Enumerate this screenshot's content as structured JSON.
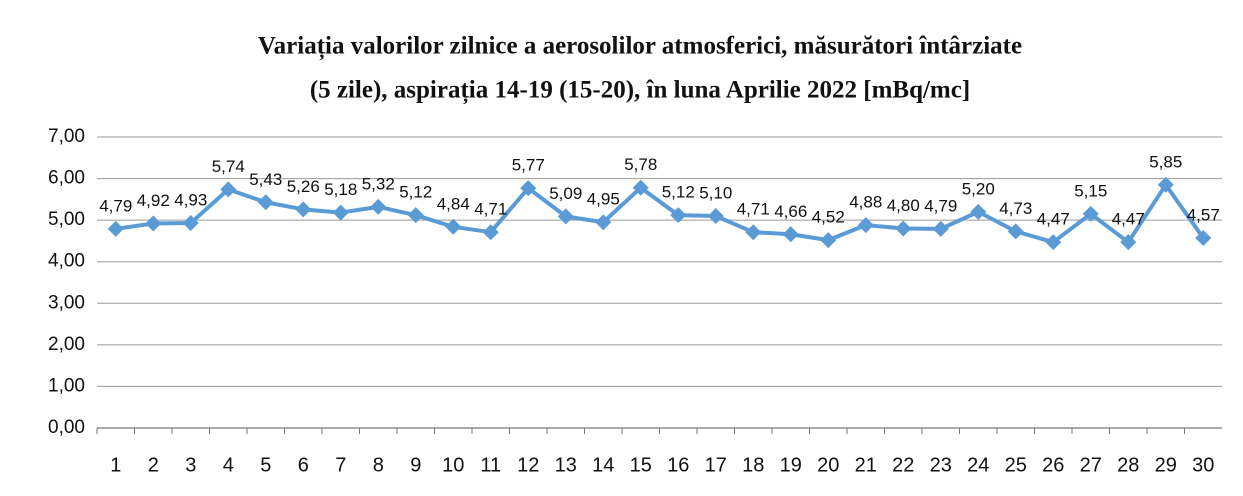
{
  "chart_data": {
    "type": "line",
    "title": [
      "Variația valorilor zilnice a aerosolilor atmosferici, măsurători întârziate",
      "(5 zile), aspirația 14-19 (15-20),  în luna Aprilie 2022 [mBq/mc]"
    ],
    "categories": [
      1,
      2,
      3,
      4,
      5,
      6,
      7,
      8,
      9,
      10,
      11,
      12,
      13,
      14,
      15,
      16,
      17,
      18,
      19,
      20,
      21,
      22,
      23,
      24,
      25,
      26,
      27,
      28,
      29,
      30
    ],
    "values": [
      4.79,
      4.92,
      4.93,
      5.74,
      5.43,
      5.26,
      5.18,
      5.32,
      5.12,
      4.84,
      4.71,
      5.77,
      5.09,
      4.95,
      5.78,
      5.12,
      5.1,
      4.71,
      4.66,
      4.52,
      4.88,
      4.8,
      4.79,
      5.2,
      4.73,
      4.47,
      5.15,
      4.47,
      5.85,
      4.57
    ],
    "value_labels": [
      "4,79",
      "4,92",
      "4,93",
      "5,74",
      "5,43",
      "5,26",
      "5,18",
      "5,32",
      "5,12",
      "4,84",
      "4,71",
      "5,77",
      "5,09",
      "4,95",
      "5,78",
      "5,12",
      "5,10",
      "4,71",
      "4,66",
      "4,52",
      "4,88",
      "4,80",
      "4,79",
      "5,20",
      "4,73",
      "4,47",
      "5,15",
      "4,47",
      "5,85",
      "4,57"
    ],
    "color": "#5b9bd5",
    "ylim": [
      0,
      7
    ],
    "yticks": [
      {
        "value": 0,
        "label": "0,00"
      },
      {
        "value": 1,
        "label": "1,00"
      },
      {
        "value": 2,
        "label": "2,00"
      },
      {
        "value": 3,
        "label": "3,00"
      },
      {
        "value": 4,
        "label": "4,00"
      },
      {
        "value": 5,
        "label": "5,00"
      },
      {
        "value": 6,
        "label": "6,00"
      },
      {
        "value": 7,
        "label": "7,00"
      }
    ],
    "grid": true
  }
}
